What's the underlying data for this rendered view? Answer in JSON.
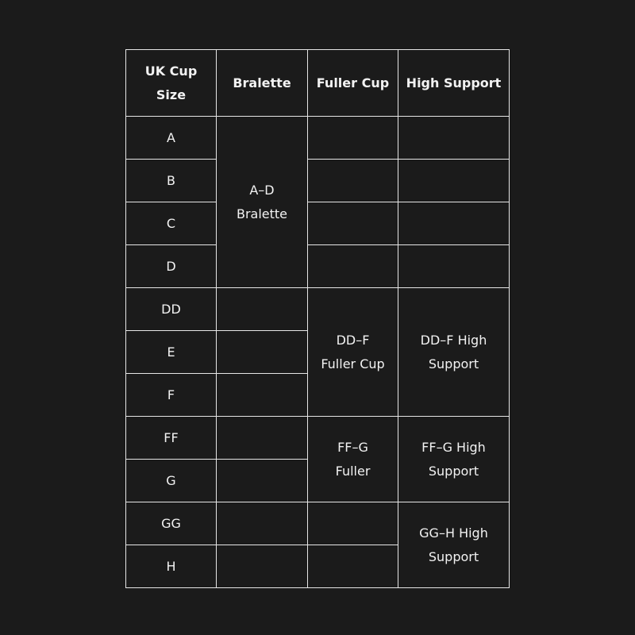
{
  "headers": [
    "UK Cup\nSize",
    "Bralette",
    "Fuller Cup",
    "High Support"
  ],
  "sizes": [
    "A",
    "B",
    "C",
    "D",
    "DD",
    "E",
    "F",
    "FF",
    "G",
    "GG",
    "H"
  ],
  "merged": {
    "bralette_a_d": "A–D\nBralette",
    "fuller_dd_f": "DD–F\nFuller Cup",
    "high_dd_f": "DD–F High\nSupport",
    "fuller_ff_g": "FF–G\nFuller",
    "high_ff_g": "FF–G High\nSupport",
    "high_gg_h": "GG–H High\nSupport"
  }
}
